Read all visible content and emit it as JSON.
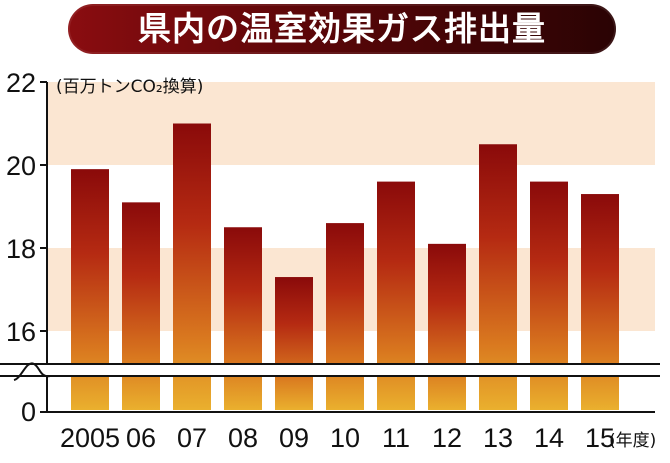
{
  "title": "県内の温室効果ガス排出量",
  "chart_data": {
    "type": "bar",
    "title": "県内の温室効果ガス排出量",
    "ylabel": "(百万トンCO₂換算)",
    "xlabel": "(年度)",
    "categories": [
      "2005",
      "06",
      "07",
      "08",
      "09",
      "10",
      "11",
      "12",
      "13",
      "14",
      "15"
    ],
    "values": [
      19.9,
      19.1,
      21.0,
      18.5,
      17.3,
      18.6,
      19.6,
      18.1,
      20.5,
      19.6,
      19.3
    ],
    "y_ticks": [
      "22",
      "20",
      "18",
      "16",
      "0"
    ],
    "ylim": [
      16,
      22
    ],
    "axis_break": true,
    "bar_gradient": [
      "#8a0a0a",
      "#e0a02a"
    ],
    "band_color": "#fbe6d2"
  }
}
